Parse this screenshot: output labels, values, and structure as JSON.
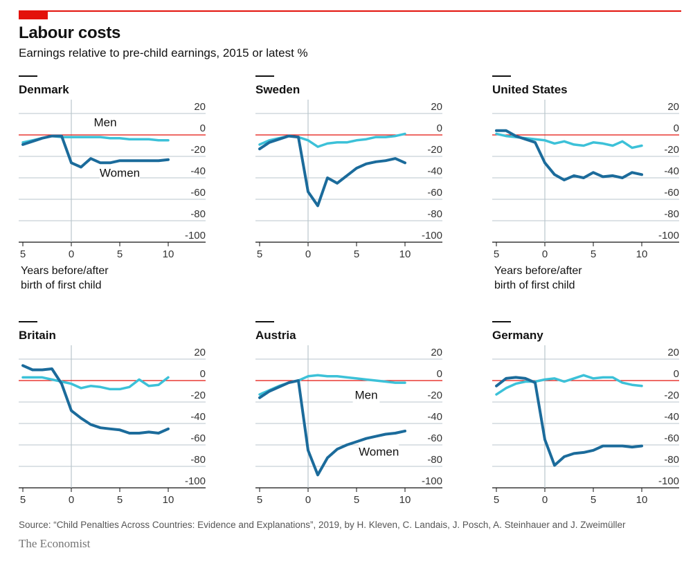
{
  "header": {
    "title": "Labour costs",
    "subtitle": "Earnings relative to pre-child earnings, 2015 or latest %"
  },
  "footer": {
    "source": "Source: “Child Penalties Across Countries: Evidence and Explanations”, 2019, by H. Kleven, C. Landais, J. Posch, A. Steinhauer and J. Zweimüller",
    "brand": "The Economist"
  },
  "colors": {
    "women": "#1b6b9b",
    "men": "#3cc1d8",
    "zero": "#e3120b",
    "grid": "#b9c6cc",
    "accent": "#e3120b"
  },
  "axis_note": [
    "Years before/after",
    "birth of first child"
  ],
  "chart_data": [
    {
      "type": "line",
      "panel": "Denmark",
      "x": [
        -5,
        -4,
        -3,
        -2,
        -1,
        0,
        1,
        2,
        3,
        4,
        5,
        6,
        7,
        8,
        9,
        10
      ],
      "xticks": [
        "5",
        "0",
        "5",
        "10"
      ],
      "yticks": [
        "20",
        "0",
        "-20",
        "-40",
        "-60",
        "-80",
        "-100"
      ],
      "ylim": [
        -100,
        20
      ],
      "series": [
        {
          "key": "women",
          "values": [
            -9,
            -6,
            -3,
            -1,
            -1,
            -26,
            -30,
            -22,
            -26,
            -26,
            -24,
            -24,
            -24,
            -24,
            -24,
            -23
          ]
        },
        {
          "key": "men",
          "values": [
            -7,
            -5,
            -3,
            -1,
            -2,
            -2,
            -2,
            -2,
            -2,
            -3,
            -3,
            -4,
            -4,
            -4,
            -5,
            -5
          ]
        }
      ],
      "annotations": [
        {
          "text": "Men",
          "x": 3.5,
          "y": 8
        },
        {
          "text": "Women",
          "x": 5,
          "y": -39
        }
      ]
    },
    {
      "type": "line",
      "panel": "Sweden",
      "x": [
        -5,
        -4,
        -3,
        -2,
        -1,
        0,
        1,
        2,
        3,
        4,
        5,
        6,
        7,
        8,
        9,
        10
      ],
      "xticks": [
        "5",
        "0",
        "5",
        "10"
      ],
      "yticks": [
        "20",
        "0",
        "-20",
        "-40",
        "-60",
        "-80",
        "-100"
      ],
      "ylim": [
        -100,
        20
      ],
      "series": [
        {
          "key": "women",
          "values": [
            -13,
            -7,
            -4,
            -1,
            -2,
            -53,
            -66,
            -40,
            -45,
            -38,
            -31,
            -27,
            -25,
            -24,
            -22,
            -26
          ]
        },
        {
          "key": "men",
          "values": [
            -9,
            -5,
            -3,
            -1,
            -2,
            -5,
            -11,
            -8,
            -7,
            -7,
            -5,
            -4,
            -2,
            -2,
            -1,
            1
          ]
        }
      ],
      "annotations": []
    },
    {
      "type": "line",
      "panel": "United States",
      "x": [
        -5,
        -4,
        -3,
        -2,
        -1,
        0,
        1,
        2,
        3,
        4,
        5,
        6,
        7,
        8,
        9,
        10
      ],
      "xticks": [
        "5",
        "0",
        "5",
        "10"
      ],
      "yticks": [
        "20",
        "0",
        "-20",
        "-40",
        "-60",
        "-80",
        "-100"
      ],
      "ylim": [
        -100,
        20
      ],
      "series": [
        {
          "key": "women",
          "values": [
            4,
            4,
            -1,
            -4,
            -7,
            -26,
            -37,
            -42,
            -38,
            -40,
            -35,
            -39,
            -38,
            -40,
            -35,
            -37
          ]
        },
        {
          "key": "men",
          "values": [
            1,
            -1,
            -2,
            -3,
            -4,
            -5,
            -8,
            -6,
            -9,
            -10,
            -7,
            -8,
            -10,
            -6,
            -12,
            -10
          ]
        }
      ],
      "annotations": []
    },
    {
      "type": "line",
      "panel": "Britain",
      "x": [
        -5,
        -4,
        -3,
        -2,
        -1,
        0,
        1,
        2,
        3,
        4,
        5,
        6,
        7,
        8,
        9,
        10
      ],
      "xticks": [
        "5",
        "0",
        "5",
        "10"
      ],
      "yticks": [
        "20",
        "0",
        "-20",
        "-40",
        "-60",
        "-80",
        "-100"
      ],
      "ylim": [
        -100,
        20
      ],
      "series": [
        {
          "key": "women",
          "values": [
            14,
            10,
            10,
            11,
            -3,
            -28,
            -35,
            -41,
            -44,
            -45,
            -46,
            -49,
            -49,
            -48,
            -49,
            -45
          ]
        },
        {
          "key": "men",
          "values": [
            3,
            3,
            3,
            1,
            -1,
            -3,
            -7,
            -5,
            -6,
            -8,
            -8,
            -6,
            1,
            -5,
            -4,
            3
          ]
        }
      ],
      "annotations": []
    },
    {
      "type": "line",
      "panel": "Austria",
      "x": [
        -5,
        -4,
        -3,
        -2,
        -1,
        0,
        1,
        2,
        3,
        4,
        5,
        6,
        7,
        8,
        9,
        10
      ],
      "xticks": [
        "5",
        "0",
        "5",
        "10"
      ],
      "yticks": [
        "20",
        "0",
        "-20",
        "-40",
        "-60",
        "-80",
        "-100"
      ],
      "ylim": [
        -100,
        20
      ],
      "series": [
        {
          "key": "women",
          "values": [
            -16,
            -10,
            -6,
            -2,
            0,
            -65,
            -88,
            -72,
            -64,
            -60,
            -57,
            -54,
            -52,
            -50,
            -49,
            -47
          ]
        },
        {
          "key": "men",
          "values": [
            -13,
            -9,
            -5,
            -2,
            0,
            4,
            5,
            4,
            4,
            3,
            2,
            1,
            0,
            -1,
            -2,
            -2
          ]
        }
      ],
      "annotations": [
        {
          "text": "Men",
          "x": 6,
          "y": -17
        },
        {
          "text": "Women",
          "x": 7.3,
          "y": -70
        }
      ]
    },
    {
      "type": "line",
      "panel": "Germany",
      "x": [
        -5,
        -4,
        -3,
        -2,
        -1,
        0,
        1,
        2,
        3,
        4,
        5,
        6,
        7,
        8,
        9,
        10
      ],
      "xticks": [
        "5",
        "0",
        "5",
        "10"
      ],
      "yticks": [
        "20",
        "0",
        "-20",
        "-40",
        "-60",
        "-80",
        "-100"
      ],
      "ylim": [
        -100,
        20
      ],
      "series": [
        {
          "key": "women",
          "values": [
            -5,
            2,
            3,
            2,
            -2,
            -55,
            -79,
            -71,
            -68,
            -67,
            -65,
            -61,
            -61,
            -61,
            -62,
            -61
          ]
        },
        {
          "key": "men",
          "values": [
            -13,
            -7,
            -3,
            -1,
            -1,
            1,
            2,
            -1,
            2,
            5,
            2,
            3,
            3,
            -2,
            -4,
            -5
          ]
        }
      ],
      "annotations": []
    }
  ]
}
